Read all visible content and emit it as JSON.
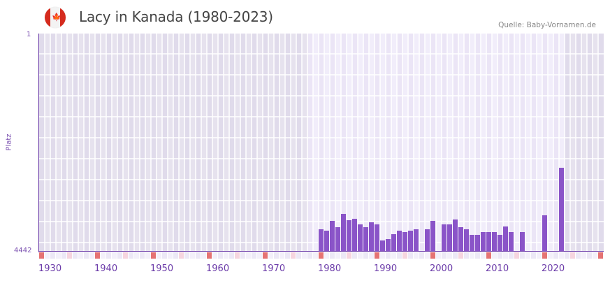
{
  "header": {
    "title": "Lacy in Kanada (1980-2023)",
    "source": "Quelle: Baby-Vornamen.de",
    "flag_icon": "canada-flag-icon"
  },
  "axes": {
    "y_top_label": "1",
    "y_bottom_label": "4442",
    "y_title": "Platz",
    "x_ticks": [
      "1930",
      "1940",
      "1950",
      "1960",
      "1970",
      "1980",
      "1990",
      "2000",
      "2010",
      "2020"
    ]
  },
  "colors": {
    "bar": "#8a54c8",
    "axis": "#6a3aa8",
    "decade_marker": "#e57373",
    "half_decade_marker": "#f6d5df",
    "bg_outside": "#e3ddee",
    "bg_inside": "#efeaf8"
  },
  "chart_data": {
    "type": "bar",
    "title": "Lacy in Kanada (1980-2023)",
    "xlabel": "",
    "ylabel": "Platz",
    "ylim": [
      4442,
      1
    ],
    "y_inverted": true,
    "x_range": [
      1930,
      2030
    ],
    "highlight_range": [
      1978,
      2023
    ],
    "categories": [
      1980,
      1981,
      1982,
      1983,
      1984,
      1985,
      1986,
      1987,
      1988,
      1989,
      1990,
      1991,
      1992,
      1993,
      1994,
      1995,
      1996,
      1997,
      1998,
      1999,
      2000,
      2001,
      2002,
      2003,
      2004,
      2005,
      2006,
      2007,
      2008,
      2009,
      2010,
      2011,
      2012,
      2013,
      2014,
      2015,
      2016,
      2017,
      2018,
      2019,
      2020,
      2021,
      2022,
      2023
    ],
    "values": [
      3990,
      4020,
      3820,
      3950,
      3670,
      3800,
      3780,
      3880,
      3950,
      3850,
      3880,
      4220,
      4180,
      4080,
      4020,
      4050,
      4020,
      3980,
      null,
      3990,
      3820,
      null,
      3890,
      3890,
      3790,
      3950,
      3980,
      4100,
      4100,
      4040,
      4040,
      4040,
      4100,
      3930,
      4050,
      null,
      4050,
      null,
      null,
      null,
      3700,
      null,
      null,
      2740
    ],
    "grid": true,
    "legend": null
  }
}
